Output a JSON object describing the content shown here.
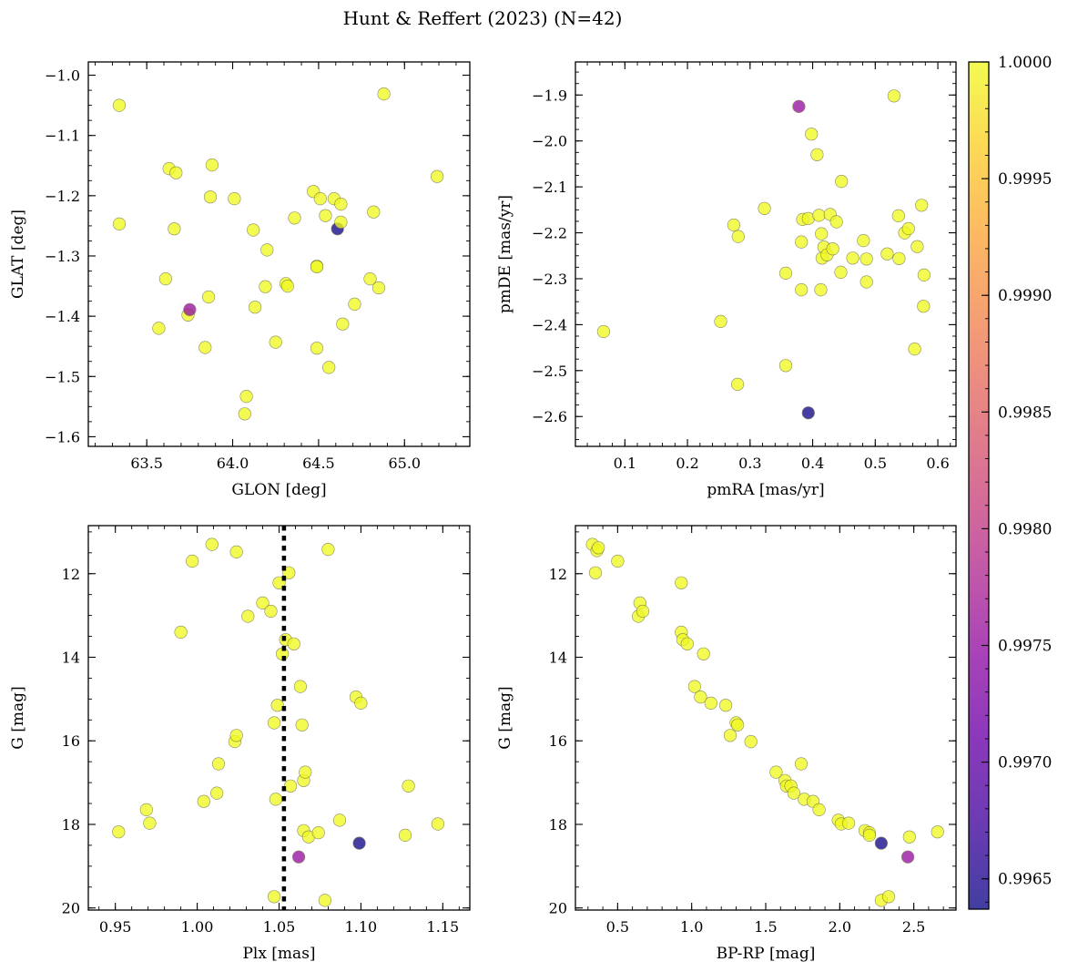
{
  "figure": {
    "title": "Hunt & Reffert (2023) (N=42)"
  },
  "colorbar": {
    "colormap": "plasma",
    "range": [
      0.99637,
      1.0
    ],
    "tick_values": [
      0.9965,
      0.997,
      0.9975,
      0.998,
      0.9985,
      0.999,
      0.9995,
      1.0
    ],
    "tick_labels": [
      "0.9965",
      "0.9970",
      "0.9975",
      "0.9980",
      "0.9985",
      "0.9990",
      "0.9995",
      "1.0000"
    ]
  },
  "chart_data": [
    {
      "type": "scatter",
      "xlabel": "GLON [deg]",
      "ylabel": "GLAT [deg]",
      "xlim": [
        63.16,
        65.38
      ],
      "ylim": [
        -1.616,
        -0.978
      ],
      "y_inverted": false,
      "x_ticks": [
        63.5,
        64.0,
        64.5,
        65.0
      ],
      "x_tick_labels": [
        "63.5",
        "64.0",
        "64.5",
        "65.0"
      ],
      "y_ticks": [
        -1.6,
        -1.5,
        -1.4,
        -1.3,
        -1.2,
        -1.1,
        -1.0
      ],
      "y_tick_labels": [
        "−1.6",
        "−1.5",
        "−1.4",
        "−1.3",
        "−1.2",
        "−1.1",
        "−1.0"
      ],
      "points": [
        {
          "x": 63.34,
          "y": -1.05,
          "c": 1.0
        },
        {
          "x": 63.34,
          "y": -1.247,
          "c": 1.0
        },
        {
          "x": 63.57,
          "y": -1.42,
          "c": 1.0
        },
        {
          "x": 63.61,
          "y": -1.338,
          "c": 1.0
        },
        {
          "x": 63.63,
          "y": -1.155,
          "c": 1.0
        },
        {
          "x": 63.67,
          "y": -1.162,
          "c": 1.0
        },
        {
          "x": 63.66,
          "y": -1.255,
          "c": 1.0
        },
        {
          "x": 63.74,
          "y": -1.398,
          "c": 1.0
        },
        {
          "x": 63.75,
          "y": -1.389,
          "c": 0.99754
        },
        {
          "x": 63.84,
          "y": -1.452,
          "c": 1.0
        },
        {
          "x": 63.86,
          "y": -1.368,
          "c": 1.0
        },
        {
          "x": 63.87,
          "y": -1.202,
          "c": 1.0
        },
        {
          "x": 63.88,
          "y": -1.149,
          "c": 1.0
        },
        {
          "x": 64.01,
          "y": -1.205,
          "c": 1.0
        },
        {
          "x": 64.07,
          "y": -1.562,
          "c": 1.0
        },
        {
          "x": 64.08,
          "y": -1.533,
          "c": 1.0
        },
        {
          "x": 64.12,
          "y": -1.257,
          "c": 1.0
        },
        {
          "x": 64.13,
          "y": -1.385,
          "c": 1.0
        },
        {
          "x": 64.19,
          "y": -1.351,
          "c": 1.0
        },
        {
          "x": 64.2,
          "y": -1.29,
          "c": 1.0
        },
        {
          "x": 64.25,
          "y": -1.443,
          "c": 1.0
        },
        {
          "x": 64.31,
          "y": -1.346,
          "c": 1.0
        },
        {
          "x": 64.32,
          "y": -1.35,
          "c": 1.0
        },
        {
          "x": 64.36,
          "y": -1.237,
          "c": 1.0
        },
        {
          "x": 64.47,
          "y": -1.193,
          "c": 1.0
        },
        {
          "x": 64.49,
          "y": -1.317,
          "c": 1.0
        },
        {
          "x": 64.49,
          "y": -1.318,
          "c": 1.0
        },
        {
          "x": 64.49,
          "y": -1.453,
          "c": 1.0
        },
        {
          "x": 64.51,
          "y": -1.205,
          "c": 1.0
        },
        {
          "x": 64.54,
          "y": -1.233,
          "c": 1.0
        },
        {
          "x": 64.56,
          "y": -1.485,
          "c": 1.0
        },
        {
          "x": 64.59,
          "y": -1.205,
          "c": 1.0
        },
        {
          "x": 64.61,
          "y": -1.255,
          "c": 0.99641
        },
        {
          "x": 64.63,
          "y": -1.214,
          "c": 1.0
        },
        {
          "x": 64.63,
          "y": -1.244,
          "c": 1.0
        },
        {
          "x": 64.64,
          "y": -1.413,
          "c": 1.0
        },
        {
          "x": 64.71,
          "y": -1.38,
          "c": 1.0
        },
        {
          "x": 64.8,
          "y": -1.338,
          "c": 1.0
        },
        {
          "x": 64.82,
          "y": -1.227,
          "c": 1.0
        },
        {
          "x": 64.85,
          "y": -1.353,
          "c": 1.0
        },
        {
          "x": 64.88,
          "y": -1.031,
          "c": 1.0
        },
        {
          "x": 65.19,
          "y": -1.168,
          "c": 1.0
        }
      ]
    },
    {
      "type": "scatter",
      "xlabel": "pmRA [mas/yr]",
      "ylabel": "pmDE [mas/yr]",
      "xlim": [
        0.021,
        0.629
      ],
      "ylim": [
        -2.665,
        -1.828
      ],
      "y_inverted": false,
      "x_ticks": [
        0.1,
        0.2,
        0.3,
        0.4,
        0.5,
        0.6
      ],
      "x_tick_labels": [
        "0.1",
        "0.2",
        "0.3",
        "0.4",
        "0.5",
        "0.6"
      ],
      "y_ticks": [
        -2.6,
        -2.5,
        -2.4,
        -2.3,
        -2.2,
        -2.1,
        -2.0,
        -1.9
      ],
      "y_tick_labels": [
        "−2.6",
        "−2.5",
        "−2.4",
        "−2.3",
        "−2.2",
        "−2.1",
        "−2.0",
        "−1.9"
      ],
      "points": [
        {
          "x": 0.066,
          "y": -2.415,
          "c": 1.0
        },
        {
          "x": 0.253,
          "y": -2.393,
          "c": 1.0
        },
        {
          "x": 0.274,
          "y": -2.183,
          "c": 1.0
        },
        {
          "x": 0.281,
          "y": -2.208,
          "c": 1.0
        },
        {
          "x": 0.28,
          "y": -2.53,
          "c": 1.0
        },
        {
          "x": 0.323,
          "y": -2.147,
          "c": 1.0
        },
        {
          "x": 0.357,
          "y": -2.288,
          "c": 1.0
        },
        {
          "x": 0.357,
          "y": -2.489,
          "c": 1.0
        },
        {
          "x": 0.378,
          "y": -1.925,
          "c": 0.99754
        },
        {
          "x": 0.382,
          "y": -2.324,
          "c": 1.0
        },
        {
          "x": 0.382,
          "y": -2.22,
          "c": 1.0
        },
        {
          "x": 0.384,
          "y": -2.171,
          "c": 1.0
        },
        {
          "x": 0.393,
          "y": -2.169,
          "c": 1.0
        },
        {
          "x": 0.393,
          "y": -2.592,
          "c": 0.99641
        },
        {
          "x": 0.398,
          "y": -1.985,
          "c": 1.0
        },
        {
          "x": 0.407,
          "y": -2.03,
          "c": 1.0
        },
        {
          "x": 0.41,
          "y": -2.162,
          "c": 1.0
        },
        {
          "x": 0.413,
          "y": -2.324,
          "c": 1.0
        },
        {
          "x": 0.414,
          "y": -2.202,
          "c": 1.0
        },
        {
          "x": 0.415,
          "y": -2.255,
          "c": 1.0
        },
        {
          "x": 0.418,
          "y": -2.231,
          "c": 1.0
        },
        {
          "x": 0.423,
          "y": -2.248,
          "c": 1.0
        },
        {
          "x": 0.428,
          "y": -2.16,
          "c": 1.0
        },
        {
          "x": 0.432,
          "y": -2.235,
          "c": 1.0
        },
        {
          "x": 0.438,
          "y": -2.176,
          "c": 1.0
        },
        {
          "x": 0.445,
          "y": -2.286,
          "c": 1.0
        },
        {
          "x": 0.446,
          "y": -2.088,
          "c": 1.0
        },
        {
          "x": 0.464,
          "y": -2.255,
          "c": 1.0
        },
        {
          "x": 0.481,
          "y": -2.217,
          "c": 1.0
        },
        {
          "x": 0.486,
          "y": -2.257,
          "c": 1.0
        },
        {
          "x": 0.486,
          "y": -2.307,
          "c": 1.0
        },
        {
          "x": 0.519,
          "y": -2.246,
          "c": 1.0
        },
        {
          "x": 0.53,
          "y": -1.902,
          "c": 1.0
        },
        {
          "x": 0.537,
          "y": -2.163,
          "c": 1.0
        },
        {
          "x": 0.538,
          "y": -2.256,
          "c": 1.0
        },
        {
          "x": 0.547,
          "y": -2.2,
          "c": 1.0
        },
        {
          "x": 0.553,
          "y": -2.191,
          "c": 1.0
        },
        {
          "x": 0.563,
          "y": -2.453,
          "c": 1.0
        },
        {
          "x": 0.567,
          "y": -2.23,
          "c": 1.0
        },
        {
          "x": 0.574,
          "y": -2.14,
          "c": 1.0
        },
        {
          "x": 0.577,
          "y": -2.36,
          "c": 1.0
        },
        {
          "x": 0.578,
          "y": -2.292,
          "c": 1.0
        }
      ]
    },
    {
      "type": "scatter",
      "xlabel": "Plx [mas]",
      "ylabel": "G [mag]",
      "xlim": [
        0.9335,
        1.1665
      ],
      "ylim": [
        20.05,
        10.85
      ],
      "y_inverted": true,
      "x_ticks": [
        0.95,
        1.0,
        1.05,
        1.1,
        1.15
      ],
      "x_tick_labels": [
        "0.95",
        "1.00",
        "1.05",
        "1.10",
        "1.15"
      ],
      "y_ticks": [
        12,
        14,
        16,
        18,
        20
      ],
      "y_tick_labels": [
        "12",
        "14",
        "16",
        "18",
        "20"
      ],
      "reference_line": {
        "x": 1.053
      },
      "points": [
        {
          "x": 0.952,
          "y": 18.18,
          "c": 1.0
        },
        {
          "x": 0.969,
          "y": 17.65,
          "c": 1.0
        },
        {
          "x": 0.971,
          "y": 17.97,
          "c": 1.0
        },
        {
          "x": 0.99,
          "y": 13.4,
          "c": 1.0
        },
        {
          "x": 0.997,
          "y": 11.7,
          "c": 1.0
        },
        {
          "x": 1.004,
          "y": 17.45,
          "c": 1.0
        },
        {
          "x": 1.009,
          "y": 11.3,
          "c": 1.0
        },
        {
          "x": 1.012,
          "y": 17.25,
          "c": 1.0
        },
        {
          "x": 1.013,
          "y": 16.55,
          "c": 1.0
        },
        {
          "x": 1.023,
          "y": 16.02,
          "c": 1.0
        },
        {
          "x": 1.024,
          "y": 11.48,
          "c": 1.0
        },
        {
          "x": 1.024,
          "y": 15.87,
          "c": 1.0
        },
        {
          "x": 1.031,
          "y": 13.02,
          "c": 1.0
        },
        {
          "x": 1.04,
          "y": 12.7,
          "c": 1.0
        },
        {
          "x": 1.045,
          "y": 12.9,
          "c": 1.0
        },
        {
          "x": 1.047,
          "y": 19.73,
          "c": 1.0
        },
        {
          "x": 1.047,
          "y": 15.57,
          "c": 1.0
        },
        {
          "x": 1.048,
          "y": 17.4,
          "c": 1.0
        },
        {
          "x": 1.049,
          "y": 15.15,
          "c": 1.0
        },
        {
          "x": 1.05,
          "y": 12.22,
          "c": 1.0
        },
        {
          "x": 1.052,
          "y": 13.92,
          "c": 1.0
        },
        {
          "x": 1.054,
          "y": 13.58,
          "c": 1.0
        },
        {
          "x": 1.056,
          "y": 11.98,
          "c": 1.0
        },
        {
          "x": 1.057,
          "y": 17.08,
          "c": 1.0
        },
        {
          "x": 1.059,
          "y": 13.68,
          "c": 1.0
        },
        {
          "x": 1.062,
          "y": 18.78,
          "c": 0.99754
        },
        {
          "x": 1.063,
          "y": 14.7,
          "c": 1.0
        },
        {
          "x": 1.064,
          "y": 15.62,
          "c": 1.0
        },
        {
          "x": 1.065,
          "y": 18.15,
          "c": 1.0
        },
        {
          "x": 1.065,
          "y": 16.95,
          "c": 1.0
        },
        {
          "x": 1.066,
          "y": 16.75,
          "c": 1.0
        },
        {
          "x": 1.068,
          "y": 18.3,
          "c": 1.0
        },
        {
          "x": 1.074,
          "y": 18.2,
          "c": 1.0
        },
        {
          "x": 1.078,
          "y": 19.82,
          "c": 1.0
        },
        {
          "x": 1.08,
          "y": 11.42,
          "c": 1.0
        },
        {
          "x": 1.087,
          "y": 17.9,
          "c": 1.0
        },
        {
          "x": 1.097,
          "y": 14.95,
          "c": 1.0
        },
        {
          "x": 1.099,
          "y": 18.45,
          "c": 0.99641
        },
        {
          "x": 1.1,
          "y": 15.1,
          "c": 1.0
        },
        {
          "x": 1.127,
          "y": 18.26,
          "c": 1.0
        },
        {
          "x": 1.129,
          "y": 17.08,
          "c": 1.0
        },
        {
          "x": 1.147,
          "y": 17.99,
          "c": 1.0
        }
      ]
    },
    {
      "type": "scatter",
      "xlabel": "BP-RP [mag]",
      "ylabel": "G [mag]",
      "xlim": [
        0.215,
        2.785
      ],
      "ylim": [
        20.05,
        10.85
      ],
      "y_inverted": true,
      "x_ticks": [
        0.5,
        1.0,
        1.5,
        2.0,
        2.5
      ],
      "x_tick_labels": [
        "0.5",
        "1.0",
        "1.5",
        "2.0",
        "2.5"
      ],
      "y_ticks": [
        12,
        14,
        16,
        18,
        20
      ],
      "y_tick_labels": [
        "12",
        "14",
        "16",
        "18",
        "20"
      ],
      "points": [
        {
          "x": 0.33,
          "y": 11.3,
          "c": 1.0
        },
        {
          "x": 0.36,
          "y": 11.45,
          "c": 1.0
        },
        {
          "x": 0.35,
          "y": 11.98,
          "c": 1.0
        },
        {
          "x": 0.37,
          "y": 11.38,
          "c": 1.0
        },
        {
          "x": 0.5,
          "y": 11.7,
          "c": 1.0
        },
        {
          "x": 0.64,
          "y": 13.02,
          "c": 1.0
        },
        {
          "x": 0.65,
          "y": 12.7,
          "c": 1.0
        },
        {
          "x": 0.67,
          "y": 12.9,
          "c": 1.0
        },
        {
          "x": 0.93,
          "y": 12.22,
          "c": 1.0
        },
        {
          "x": 0.93,
          "y": 13.4,
          "c": 1.0
        },
        {
          "x": 0.94,
          "y": 13.58,
          "c": 1.0
        },
        {
          "x": 0.97,
          "y": 13.68,
          "c": 1.0
        },
        {
          "x": 1.02,
          "y": 14.7,
          "c": 1.0
        },
        {
          "x": 1.08,
          "y": 13.92,
          "c": 1.0
        },
        {
          "x": 1.06,
          "y": 14.95,
          "c": 1.0
        },
        {
          "x": 1.13,
          "y": 15.1,
          "c": 1.0
        },
        {
          "x": 1.23,
          "y": 15.15,
          "c": 1.0
        },
        {
          "x": 1.26,
          "y": 15.87,
          "c": 1.0
        },
        {
          "x": 1.3,
          "y": 15.57,
          "c": 1.0
        },
        {
          "x": 1.31,
          "y": 15.62,
          "c": 1.0
        },
        {
          "x": 1.4,
          "y": 16.02,
          "c": 1.0
        },
        {
          "x": 1.57,
          "y": 16.75,
          "c": 1.0
        },
        {
          "x": 1.63,
          "y": 16.95,
          "c": 1.0
        },
        {
          "x": 1.64,
          "y": 17.08,
          "c": 1.0
        },
        {
          "x": 1.67,
          "y": 17.08,
          "c": 1.0
        },
        {
          "x": 1.69,
          "y": 17.25,
          "c": 1.0
        },
        {
          "x": 1.74,
          "y": 16.55,
          "c": 1.0
        },
        {
          "x": 1.76,
          "y": 17.4,
          "c": 1.0
        },
        {
          "x": 1.82,
          "y": 17.45,
          "c": 1.0
        },
        {
          "x": 1.86,
          "y": 17.65,
          "c": 1.0
        },
        {
          "x": 1.99,
          "y": 17.9,
          "c": 1.0
        },
        {
          "x": 2.01,
          "y": 17.99,
          "c": 1.0
        },
        {
          "x": 2.06,
          "y": 17.97,
          "c": 1.0
        },
        {
          "x": 2.17,
          "y": 18.15,
          "c": 1.0
        },
        {
          "x": 2.2,
          "y": 18.2,
          "c": 1.0
        },
        {
          "x": 2.2,
          "y": 18.26,
          "c": 1.0
        },
        {
          "x": 2.28,
          "y": 18.45,
          "c": 0.99641
        },
        {
          "x": 2.28,
          "y": 19.82,
          "c": 1.0
        },
        {
          "x": 2.33,
          "y": 19.73,
          "c": 1.0
        },
        {
          "x": 2.47,
          "y": 18.3,
          "c": 1.0
        },
        {
          "x": 2.46,
          "y": 18.78,
          "c": 0.99754
        },
        {
          "x": 2.66,
          "y": 18.18,
          "c": 1.0
        }
      ]
    }
  ]
}
